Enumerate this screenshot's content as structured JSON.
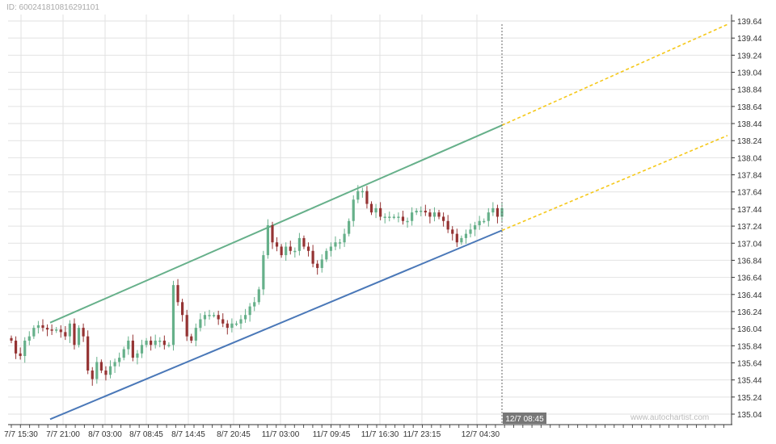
{
  "header": {
    "id_label": "ID: 600241810816291101"
  },
  "watermark": "www.autochartist.com",
  "chart_data": {
    "type": "candlestick",
    "y_ticks": [
      "139.64",
      "139.44",
      "139.24",
      "139.04",
      "138.84",
      "138.64",
      "138.44",
      "138.24",
      "138.04",
      "137.84",
      "137.64",
      "137.44",
      "137.24",
      "137.04",
      "136.84",
      "136.64",
      "136.44",
      "136.24",
      "136.04",
      "135.84",
      "135.64",
      "135.44",
      "135.24",
      "135.04"
    ],
    "ylim": [
      135.04,
      139.64
    ],
    "x_ticks": [
      "7/7 15:30",
      "7/7 21:00",
      "8/7 03:00",
      "8/7 08:45",
      "8/7 14:45",
      "8/7 20:45",
      "11/7 03:00",
      "11/7 09:45",
      "11/7 16:30",
      "11/7 23:15",
      "12/7 04:30"
    ],
    "current_time_label": "12/7 08:45",
    "colors": {
      "up": "#66b08a",
      "down": "#953333",
      "upper_line": "#66b08a",
      "lower_line": "#4a78b8",
      "projection": "#f5c81a",
      "grid": "#e2e2e2"
    },
    "closes": [
      135.9,
      135.75,
      135.72,
      135.9,
      135.95,
      136.05,
      136.08,
      136.05,
      136.03,
      136.02,
      136.03,
      136.0,
      135.95,
      136.1,
      135.85,
      136.05,
      135.95,
      135.55,
      135.45,
      135.65,
      135.55,
      135.5,
      135.6,
      135.65,
      135.7,
      135.8,
      135.9,
      135.7,
      135.75,
      135.85,
      135.9,
      135.85,
      135.9,
      135.9,
      135.85,
      135.85,
      136.55,
      136.35,
      136.2,
      135.95,
      135.9,
      136.05,
      136.15,
      136.2,
      136.2,
      136.2,
      136.15,
      136.1,
      136.05,
      136.1,
      136.1,
      136.15,
      136.2,
      136.3,
      136.35,
      136.5,
      136.9,
      137.25,
      137.05,
      137.0,
      136.9,
      137.0,
      136.95,
      136.95,
      137.1,
      137.0,
      136.95,
      136.8,
      136.75,
      136.85,
      136.95,
      137.0,
      137.05,
      137.05,
      137.15,
      137.3,
      137.55,
      137.65,
      137.65,
      137.5,
      137.4,
      137.45,
      137.35,
      137.35,
      137.35,
      137.35,
      137.35,
      137.3,
      137.3,
      137.4,
      137.42,
      137.42,
      137.4,
      137.35,
      137.4,
      137.35,
      137.3,
      137.2,
      137.15,
      137.05,
      137.1,
      137.15,
      137.2,
      137.25,
      137.3,
      137.3,
      137.4,
      137.45,
      137.35,
      137.45
    ],
    "upper_channel": {
      "start": 136.11,
      "end": 138.42,
      "projection_end": 139.6
    },
    "lower_channel": {
      "start": 134.98,
      "end": 137.19,
      "projection_end": 138.3
    }
  }
}
